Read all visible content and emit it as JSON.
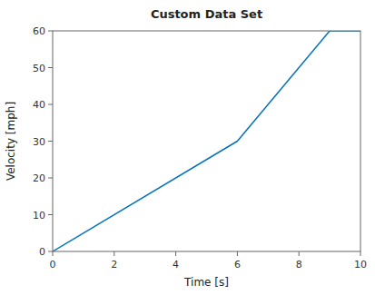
{
  "chart_data": {
    "type": "line",
    "title": "Custom Data Set",
    "xlabel": "Time [s]",
    "ylabel": "Velocity [mph]",
    "x": [
      0,
      6,
      9,
      10
    ],
    "values": [
      0,
      30,
      60,
      60
    ],
    "color": "#0072BD",
    "xlim": [
      0,
      10
    ],
    "ylim": [
      0,
      60
    ],
    "xticks": [
      0,
      2,
      4,
      6,
      8,
      10
    ],
    "yticks": [
      0,
      10,
      20,
      30,
      40,
      50,
      60
    ],
    "grid": false
  }
}
